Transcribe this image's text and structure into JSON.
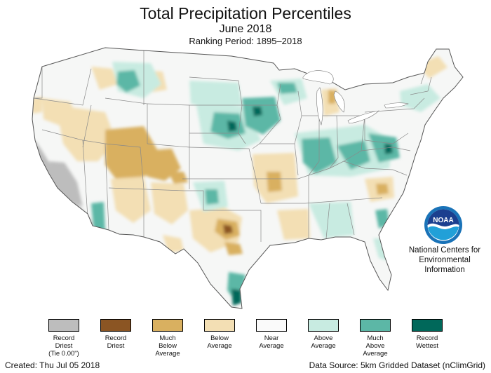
{
  "title": "Total Precipitation Percentiles",
  "subtitle": "June 2018",
  "ranking_period": "Ranking Period: 1895–2018",
  "org": {
    "logo_text": "NOAA",
    "name_lines": [
      "National Centers for",
      "Environmental",
      "Information"
    ]
  },
  "legend": [
    {
      "lines": [
        "Record",
        "Driest",
        "(Tie 0.00\")"
      ],
      "color": "#bdbdbd"
    },
    {
      "lines": [
        "Record",
        "Driest"
      ],
      "color": "#8b5523"
    },
    {
      "lines": [
        "Much",
        "Below",
        "Average"
      ],
      "color": "#d9b060"
    },
    {
      "lines": [
        "Below",
        "Average"
      ],
      "color": "#f3dfb4"
    },
    {
      "lines": [
        "Near",
        "Average"
      ],
      "color": "#fafafa"
    },
    {
      "lines": [
        "Above",
        "Average"
      ],
      "color": "#c8ebe1"
    },
    {
      "lines": [
        "Much",
        "Above",
        "Average"
      ],
      "color": "#5cb7a6"
    },
    {
      "lines": [
        "Record",
        "Wettest"
      ],
      "color": "#00685a"
    }
  ],
  "footer": {
    "created": "Created: Thu Jul 05 2018",
    "source": "Data Source: 5km Gridded Dataset (nClimGrid)"
  }
}
